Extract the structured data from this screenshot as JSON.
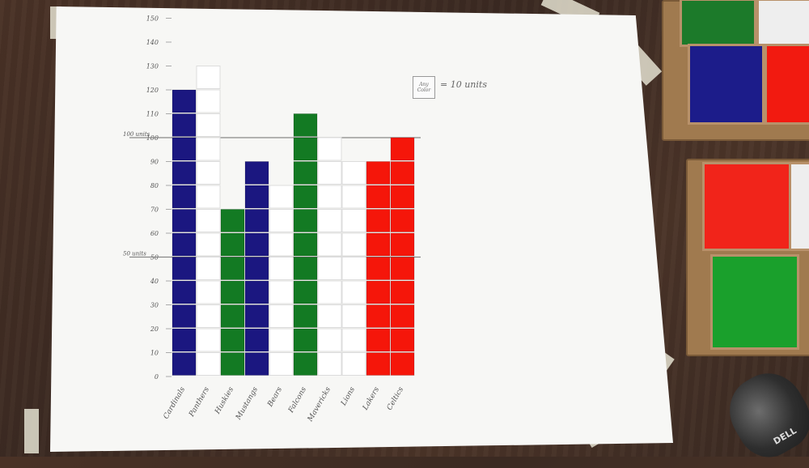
{
  "scene": {
    "description_free": true,
    "colors": {
      "blue": "#1b1780",
      "white": "#ffffff",
      "green": "#137a23",
      "red": "#f5160a",
      "poster": "#f7f7f5"
    }
  },
  "chart_data": {
    "type": "bar",
    "categories": [
      "Cardinals",
      "Panthers",
      "Huskies",
      "Mustangs",
      "Bears",
      "Falcons",
      "Mavericks",
      "Lions",
      "Lakers",
      "Celtics"
    ],
    "values": [
      115,
      130,
      70,
      90,
      80,
      110,
      100,
      90,
      90,
      100
    ],
    "colors": [
      "blue",
      "white",
      "green",
      "blue",
      "white",
      "green",
      "white",
      "white",
      "red",
      "red"
    ],
    "y_ticks": [
      "0",
      "10",
      "20",
      "30",
      "40",
      "50",
      "60",
      "70",
      "80",
      "90",
      "100",
      "110",
      "120",
      "130",
      "140",
      "150"
    ],
    "y_tick_marks": {
      "50": "50 units",
      "100": "100 units"
    },
    "ylim": [
      0,
      150
    ],
    "legend": {
      "box_label_1": "Any",
      "box_label_2": "Color",
      "text": "= 10 units"
    }
  }
}
